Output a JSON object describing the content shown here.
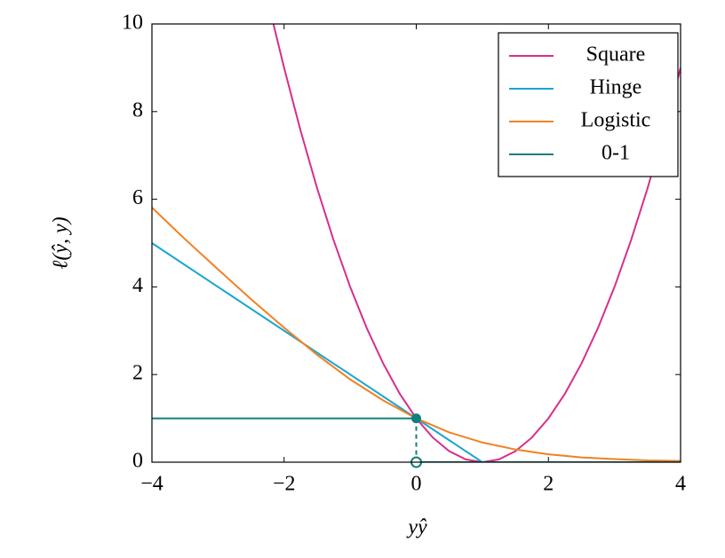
{
  "chart_data": {
    "type": "line",
    "x_label": "yŷ",
    "y_label": "ℓ(ŷ, y)",
    "xlim": [
      -4,
      4
    ],
    "ylim": [
      0,
      10
    ],
    "xticks": [
      {
        "value": -4,
        "label": "−4"
      },
      {
        "value": -2,
        "label": "−2"
      },
      0,
      2,
      4
    ],
    "yticks": [
      0,
      2,
      4,
      6,
      8,
      10
    ],
    "legend": "top-right",
    "series": [
      {
        "name": "Square",
        "color": "#d62f8b",
        "x": [
          -2.16,
          -2,
          -1.75,
          -1.5,
          -1.25,
          -1,
          -0.75,
          -0.5,
          -0.25,
          0,
          0.25,
          0.5,
          0.75,
          1,
          1.25,
          1.5,
          1.75,
          2,
          2.25,
          2.5,
          2.75,
          3,
          3.25,
          3.5,
          3.75,
          4
        ],
        "values": [
          9.99,
          9,
          7.5625,
          6.25,
          5.0625,
          4,
          3.0625,
          2.25,
          1.5625,
          1,
          0.5625,
          0.25,
          0.0625,
          0,
          0.0625,
          0.25,
          0.5625,
          1,
          1.5625,
          2.25,
          3.0625,
          4,
          5.0625,
          6.25,
          7.5625,
          9
        ]
      },
      {
        "name": "Hinge",
        "color": "#1aa6d0",
        "x": [
          -4,
          1,
          4
        ],
        "values": [
          5,
          0,
          0
        ]
      },
      {
        "name": "Logistic",
        "color": "#f28021",
        "x": [
          -4,
          -3.5,
          -3,
          -2.5,
          -2,
          -1.5,
          -1,
          -0.5,
          0,
          0.5,
          1,
          1.5,
          2,
          2.5,
          3,
          3.5,
          4
        ],
        "values": [
          5.81,
          5.09,
          4.4,
          3.72,
          3.07,
          2.45,
          1.89,
          1.41,
          1,
          0.68,
          0.45,
          0.29,
          0.18,
          0.11,
          0.07,
          0.04,
          0.03
        ]
      },
      {
        "name": "0-1",
        "color": "#127f7e",
        "x": [
          -4,
          0,
          0,
          0,
          4
        ],
        "values": [
          1,
          1,
          null,
          0,
          0
        ]
      }
    ]
  }
}
